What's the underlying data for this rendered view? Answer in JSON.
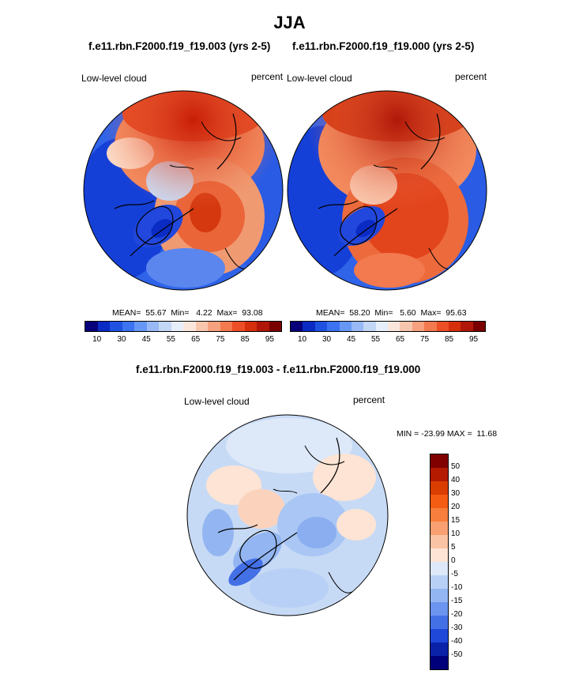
{
  "season": "JJA",
  "panel1": {
    "title": "f.e11.rbn.F2000.f19_f19.003 (yrs 2-5)",
    "variable": "Low-level cloud",
    "units": "percent",
    "mean": "MEAN=  55.67  Min=   4.22  Max=  93.08",
    "map_name": "arctic-polar-map-run-003"
  },
  "panel2": {
    "title": "f.e11.rbn.F2000.f19_f19.000 (yrs 2-5)",
    "variable": "Low-level cloud",
    "units": "percent",
    "mean": "MEAN=  58.20  Min=   5.60  Max=  95.63",
    "map_name": "arctic-polar-map-run-000"
  },
  "colorbar_top": {
    "ticks": [
      "10",
      "30",
      "45",
      "55",
      "65",
      "75",
      "85",
      "95"
    ],
    "colors": [
      "#08007a",
      "#0a2bc4",
      "#1f52e0",
      "#3b73f0",
      "#6797f5",
      "#98b9f5",
      "#c2d6f5",
      "#e6eefa",
      "#fbe6dc",
      "#f8c6ad",
      "#f6a17f",
      "#f3794f",
      "#ec4e25",
      "#d52f0c",
      "#b01708",
      "#7a0000"
    ]
  },
  "panel3": {
    "title": "f.e11.rbn.F2000.f19_f19.003 - f.e11.rbn.F2000.f19_f19.000",
    "variable": "Low-level cloud",
    "units": "percent",
    "minmax": "MIN = -23.99 MAX =  11.68",
    "map_name": "arctic-polar-map-difference"
  },
  "colorbar_diff": {
    "ticks": [
      "50",
      "40",
      "30",
      "20",
      "15",
      "10",
      "5",
      "0",
      "-5",
      "-10",
      "-15",
      "-20",
      "-30",
      "-40",
      "-50"
    ],
    "colors": [
      "#800000",
      "#b31a00",
      "#d93d00",
      "#f45c14",
      "#f77e3c",
      "#f8a071",
      "#fac3a3",
      "#fde4d4",
      "#dde9f8",
      "#b8d0f5",
      "#93b6f2",
      "#6b95ee",
      "#4470e6",
      "#1f48d9",
      "#0a22a8",
      "#00007a"
    ]
  }
}
